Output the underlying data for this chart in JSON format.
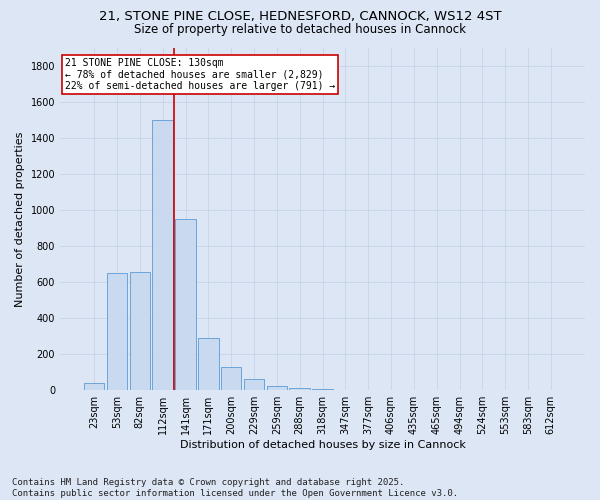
{
  "title_line1": "21, STONE PINE CLOSE, HEDNESFORD, CANNOCK, WS12 4ST",
  "title_line2": "Size of property relative to detached houses in Cannock",
  "xlabel": "Distribution of detached houses by size in Cannock",
  "ylabel": "Number of detached properties",
  "categories": [
    "23sqm",
    "53sqm",
    "82sqm",
    "112sqm",
    "141sqm",
    "171sqm",
    "200sqm",
    "229sqm",
    "259sqm",
    "288sqm",
    "318sqm",
    "347sqm",
    "377sqm",
    "406sqm",
    "435sqm",
    "465sqm",
    "494sqm",
    "524sqm",
    "553sqm",
    "583sqm",
    "612sqm"
  ],
  "values": [
    40,
    650,
    655,
    1500,
    950,
    290,
    130,
    60,
    25,
    10,
    5,
    2,
    1,
    1,
    0,
    0,
    0,
    0,
    0,
    0,
    0
  ],
  "bar_color": "#c9d9f0",
  "bar_edge_color": "#5b9bd5",
  "red_line_index": 3.5,
  "annotation_text": "21 STONE PINE CLOSE: 130sqm\n← 78% of detached houses are smaller (2,829)\n22% of semi-detached houses are larger (791) →",
  "annotation_box_color": "#ffffff",
  "annotation_box_edge": "#cc0000",
  "red_line_color": "#cc0000",
  "ylim": [
    0,
    1900
  ],
  "yticks": [
    0,
    200,
    400,
    600,
    800,
    1000,
    1200,
    1400,
    1600,
    1800
  ],
  "grid_color": "#c8d4e8",
  "background_color": "#dce6f5",
  "plot_bg_color": "#dce6f5",
  "footer_line1": "Contains HM Land Registry data © Crown copyright and database right 2025.",
  "footer_line2": "Contains public sector information licensed under the Open Government Licence v3.0.",
  "title_fontsize": 9.5,
  "subtitle_fontsize": 8.5,
  "axis_label_fontsize": 8,
  "tick_fontsize": 7,
  "annotation_fontsize": 7,
  "footer_fontsize": 6.5
}
